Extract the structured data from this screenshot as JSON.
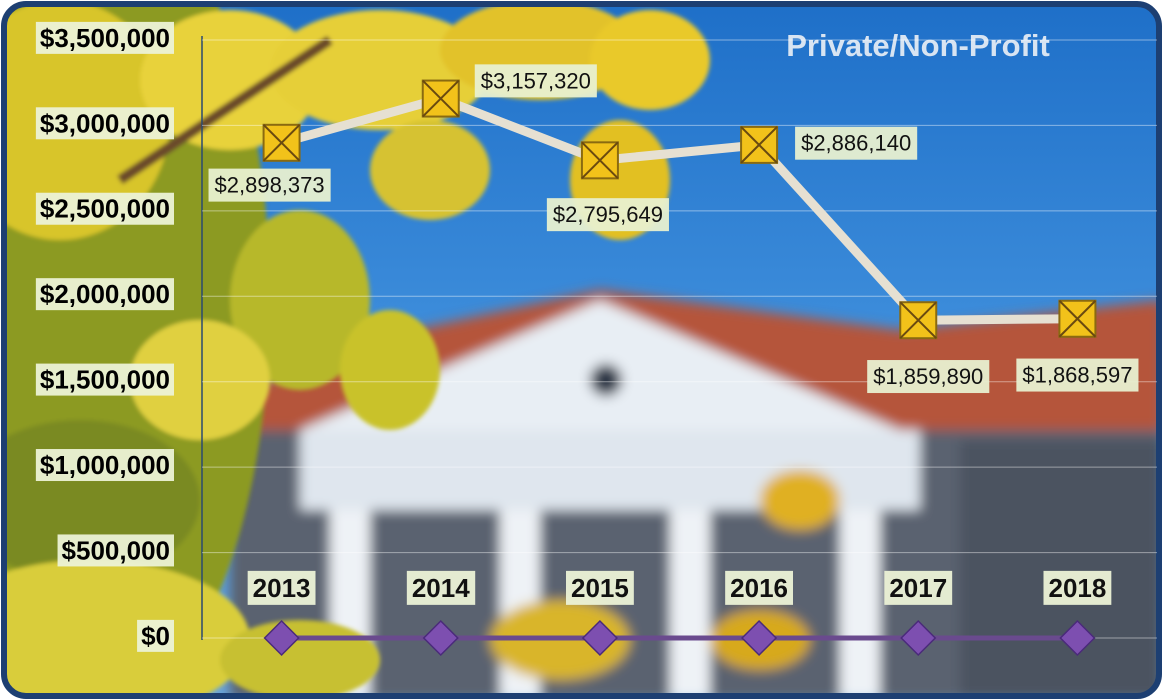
{
  "chart_data": {
    "type": "line",
    "title": "Private/Non-Profit",
    "categories": [
      "2013",
      "2014",
      "2015",
      "2016",
      "2017",
      "2018"
    ],
    "series": [
      {
        "color": "#f2c21a",
        "line_color": "#e6e0d2",
        "marker": "square-x",
        "values": [
          2898373,
          3157320,
          2795649,
          2886140,
          1859890,
          1868597
        ],
        "value_labels": [
          "$2,898,373",
          "$3,157,320",
          "$2,795,649",
          "$2,886,140",
          "$1,859,890",
          "$1,868,597"
        ]
      },
      {
        "color": "#7d4fb0",
        "line_color": "#6a4a8e",
        "marker": "diamond",
        "values": [
          0,
          0,
          0,
          0,
          0,
          0
        ]
      }
    ],
    "ylim": [
      0,
      3500000
    ],
    "yticks": [
      {
        "value": 0,
        "label": "$0"
      },
      {
        "value": 500000,
        "label": "$500,000"
      },
      {
        "value": 1000000,
        "label": "$1,000,000"
      },
      {
        "value": 1500000,
        "label": "$1,500,000"
      },
      {
        "value": 2000000,
        "label": "$2,000,000"
      },
      {
        "value": 2500000,
        "label": "$2,500,000"
      },
      {
        "value": 3000000,
        "label": "$3,000,000"
      },
      {
        "value": 3500000,
        "label": "$3,500,000"
      }
    ],
    "grid": true
  }
}
